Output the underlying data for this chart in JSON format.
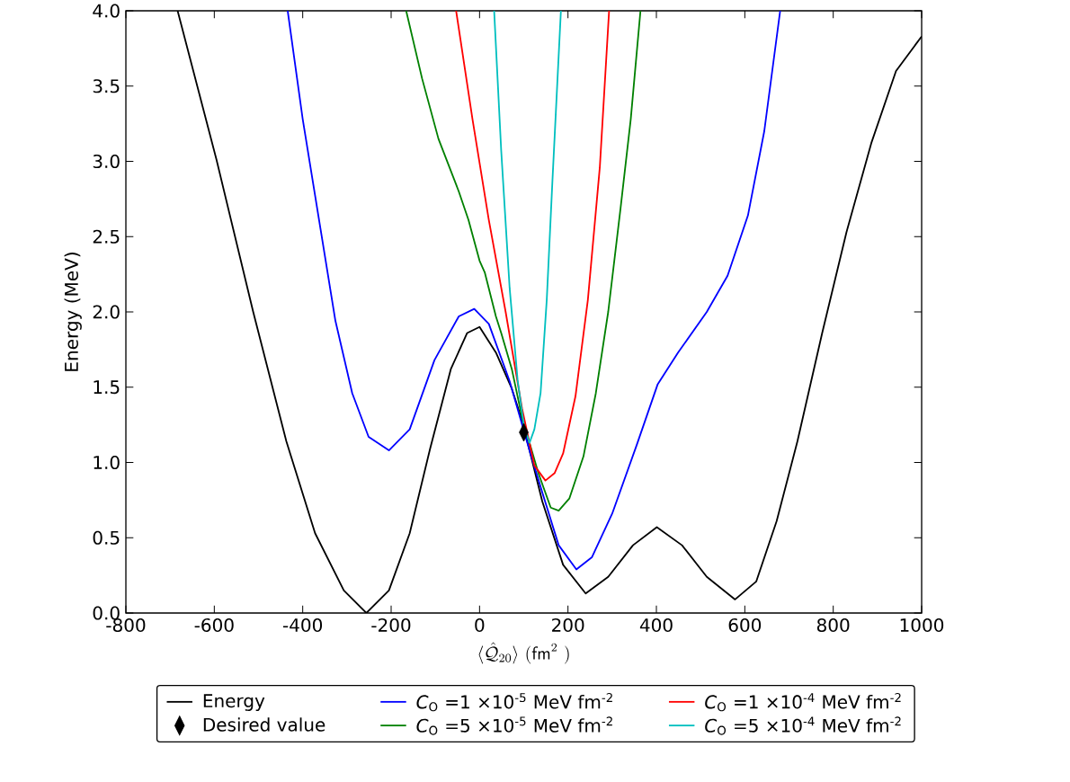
{
  "chart_data": {
    "type": "line",
    "xlabel": "\\langle\\hat{\\mathcal{Q}}_{20}\\rangle\\ (\\mathsf{fm}^{2}\\ )",
    "ylabel": "Energy (MeV)",
    "xlim": [
      -800,
      1000
    ],
    "ylim": [
      0,
      4
    ],
    "xticks": [
      -800,
      -600,
      -400,
      -200,
      0,
      200,
      400,
      600,
      800,
      1000
    ],
    "yticks": [
      {
        "value": 0,
        "label": "0.0"
      },
      {
        "value": 0.5,
        "label": "0.5"
      },
      {
        "value": 1,
        "label": "1.0"
      },
      {
        "value": 1.5,
        "label": "1.5"
      },
      {
        "value": 2,
        "label": "2.0"
      },
      {
        "value": 2.5,
        "label": "2.5"
      },
      {
        "value": 3,
        "label": "3.0"
      },
      {
        "value": 3.5,
        "label": "3.5"
      },
      {
        "value": 4,
        "label": "4.0"
      }
    ],
    "legend": "bottom",
    "marker": "none",
    "line_style": "solid",
    "series": [
      {
        "name": "Energy",
        "color": "#000000",
        "x": [
          -683,
          -595,
          -512,
          -437,
          -372,
          -307,
          -256,
          -205,
          -158,
          -112,
          -65,
          -28,
          0,
          37,
          73,
          96,
          142,
          189,
          240,
          291,
          347,
          401,
          458,
          514,
          578,
          626,
          672,
          719,
          775,
          830,
          886,
          942,
          1000
        ],
        "values": [
          4.0,
          3.01,
          2.0,
          1.14,
          0.53,
          0.15,
          0.0,
          0.15,
          0.53,
          1.09,
          1.62,
          1.86,
          1.9,
          1.73,
          1.49,
          1.28,
          0.74,
          0.32,
          0.13,
          0.24,
          0.45,
          0.57,
          0.45,
          0.24,
          0.09,
          0.21,
          0.61,
          1.14,
          1.86,
          2.53,
          3.12,
          3.6,
          3.83
        ]
      },
      {
        "name": "Desired value",
        "type": "scatter",
        "marker": "diamond",
        "color": "#000000",
        "x": [
          100
        ],
        "values": [
          1.2
        ]
      },
      {
        "name": "*C*$_{O}$ =1 ×10$^{-5}$  MeV fm$^{-2}$",
        "color": "#0000ff",
        "x": [
          -434,
          -400,
          -363,
          -326,
          -288,
          -251,
          -205,
          -158,
          -102,
          -47,
          -12,
          21,
          68,
          115,
          142,
          179,
          219,
          254,
          300,
          356,
          403,
          449,
          514,
          561,
          607,
          644,
          680
        ],
        "values": [
          4.0,
          3.28,
          2.61,
          1.94,
          1.46,
          1.17,
          1.08,
          1.22,
          1.68,
          1.97,
          2.02,
          1.92,
          1.54,
          1.06,
          0.8,
          0.45,
          0.29,
          0.37,
          0.66,
          1.12,
          1.52,
          1.73,
          2.0,
          2.24,
          2.64,
          3.2,
          4.0
        ]
      },
      {
        "name": "*C*$_{O}$ =5 ×10$^{-5}$  MeV fm$^{-2}$",
        "color": "#008000",
        "x": [
          -166,
          -130,
          -93,
          -47,
          -25,
          0,
          12,
          37,
          49,
          73,
          96,
          133,
          161,
          179,
          203,
          235,
          263,
          291,
          319,
          342,
          364
        ],
        "values": [
          4.0,
          3.55,
          3.15,
          2.8,
          2.61,
          2.34,
          2.26,
          1.97,
          1.86,
          1.62,
          1.3,
          0.93,
          0.7,
          0.68,
          0.76,
          1.04,
          1.46,
          2.0,
          2.69,
          3.28,
          4.0
        ]
      },
      {
        "name": "*C*$_{O}$ =1 ×10$^{-4}$  MeV fm$^{-2}$",
        "color": "#ff0000",
        "x": [
          -53,
          -16,
          21,
          59,
          96,
          124,
          149,
          170,
          189,
          217,
          245,
          272,
          293
        ],
        "values": [
          4.0,
          3.28,
          2.61,
          2.0,
          1.36,
          0.98,
          0.88,
          0.93,
          1.06,
          1.44,
          2.08,
          2.96,
          4.0
        ]
      },
      {
        "name": "*C*$_{O}$ =5 ×10$^{-4}$  MeV fm$^{-2}$",
        "color": "#00bfbf",
        "x": [
          33,
          49,
          68,
          86,
          100,
          113,
          124,
          138,
          152,
          165,
          184
        ],
        "values": [
          4.0,
          3.07,
          2.16,
          1.55,
          1.25,
          1.13,
          1.22,
          1.46,
          2.08,
          2.88,
          4.0
        ]
      }
    ]
  }
}
